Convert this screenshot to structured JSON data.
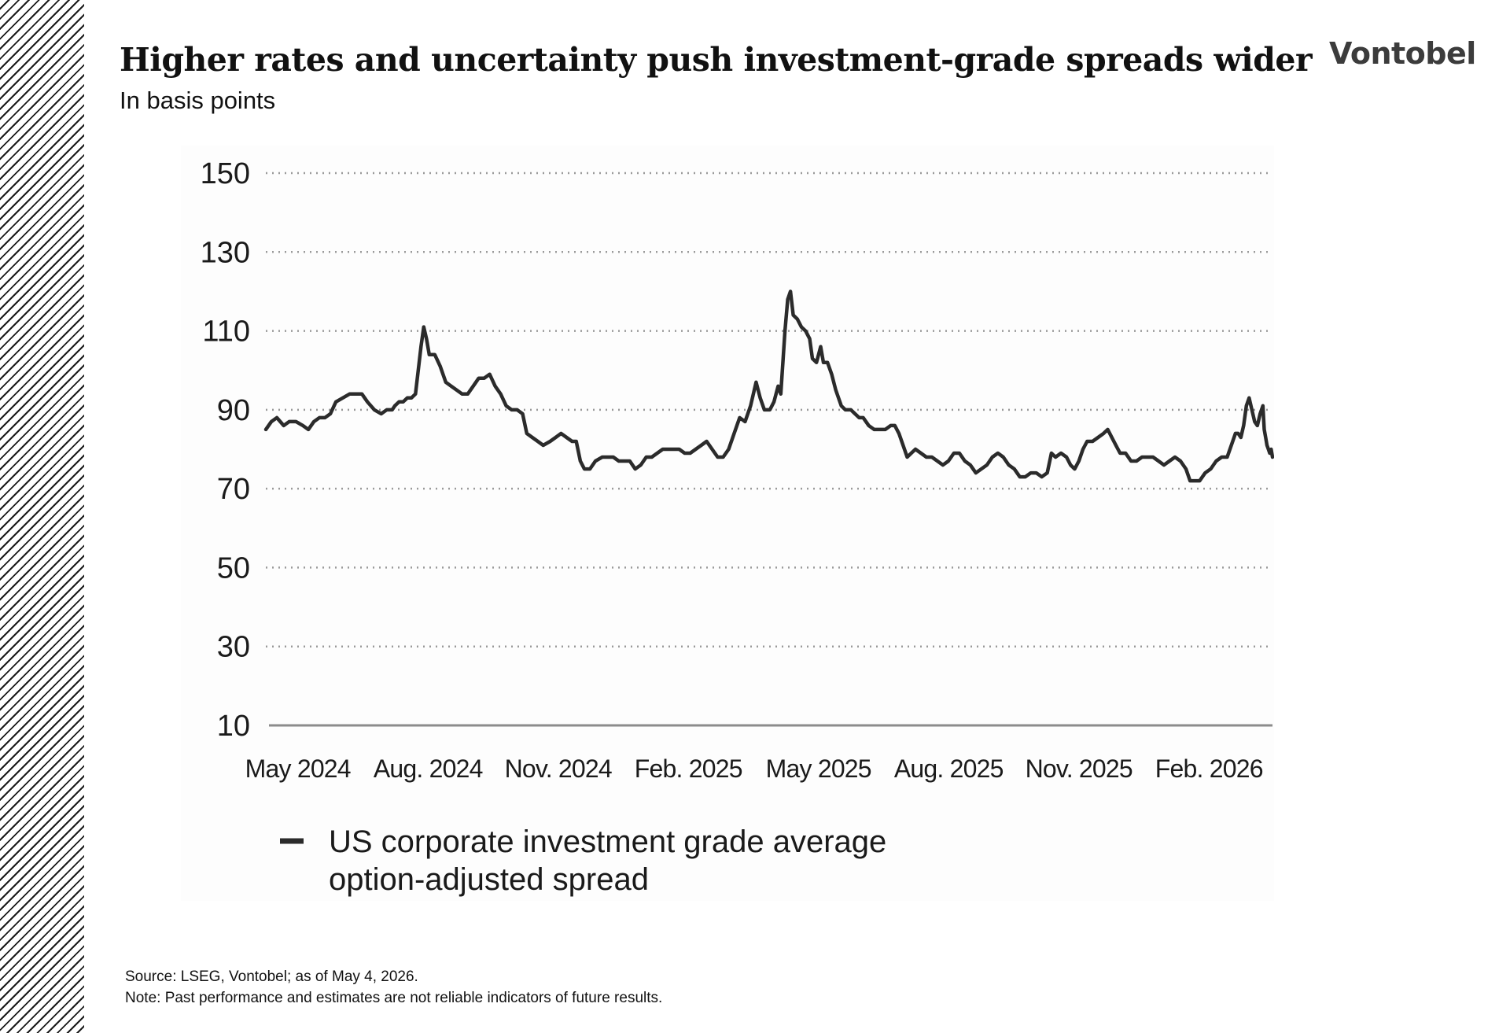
{
  "header": {
    "title": "Higher rates and uncertainty push investment-grade spreads wider",
    "subtitle": "In basis points",
    "logo_text": "Vontobel"
  },
  "colors": {
    "line": "#2b2b2b",
    "grid": "#9a9a9a",
    "axis": "#8c8c8c",
    "text": "#1a1a1a"
  },
  "chart_data": {
    "type": "line",
    "y_ticks": [
      "150",
      "130",
      "110",
      "90",
      "70",
      "50",
      "30",
      "10"
    ],
    "x_ticks": [
      "May 2024",
      "Aug. 2024",
      "Nov. 2024",
      "Feb. 2025",
      "May 2025",
      "Aug. 2025",
      "Nov. 2025",
      "Feb. 2026"
    ],
    "ylim": [
      10,
      150
    ],
    "xlim": [
      "2024-05-01",
      "2026-05-04"
    ],
    "grid": "horizontal dotted",
    "legend_position": "bottom",
    "series": [
      {
        "name": "US corporate investment grade average option-adjusted spread",
        "points": [
          [
            "2024-05-01",
            85
          ],
          [
            "2024-05-05",
            87
          ],
          [
            "2024-05-09",
            88
          ],
          [
            "2024-05-14",
            86
          ],
          [
            "2024-05-18",
            87
          ],
          [
            "2024-05-23",
            87
          ],
          [
            "2024-05-28",
            86
          ],
          [
            "2024-06-01",
            85
          ],
          [
            "2024-06-05",
            87
          ],
          [
            "2024-06-09",
            88
          ],
          [
            "2024-06-13",
            88
          ],
          [
            "2024-06-17",
            89
          ],
          [
            "2024-06-21",
            92
          ],
          [
            "2024-06-26",
            93
          ],
          [
            "2024-07-01",
            94
          ],
          [
            "2024-07-05",
            94
          ],
          [
            "2024-07-10",
            94
          ],
          [
            "2024-07-14",
            92
          ],
          [
            "2024-07-19",
            90
          ],
          [
            "2024-07-24",
            89
          ],
          [
            "2024-07-28",
            90
          ],
          [
            "2024-08-01",
            90
          ],
          [
            "2024-08-03",
            91
          ],
          [
            "2024-08-06",
            92
          ],
          [
            "2024-08-09",
            92
          ],
          [
            "2024-08-12",
            93
          ],
          [
            "2024-08-15",
            93
          ],
          [
            "2024-08-18",
            94
          ],
          [
            "2024-08-20",
            100
          ],
          [
            "2024-08-22",
            106
          ],
          [
            "2024-08-24",
            111
          ],
          [
            "2024-08-26",
            108
          ],
          [
            "2024-08-28",
            104
          ],
          [
            "2024-09-01",
            104
          ],
          [
            "2024-09-05",
            101
          ],
          [
            "2024-09-09",
            97
          ],
          [
            "2024-09-13",
            96
          ],
          [
            "2024-09-17",
            95
          ],
          [
            "2024-09-21",
            94
          ],
          [
            "2024-09-25",
            94
          ],
          [
            "2024-09-29",
            96
          ],
          [
            "2024-10-03",
            98
          ],
          [
            "2024-10-07",
            98
          ],
          [
            "2024-10-11",
            99
          ],
          [
            "2024-10-15",
            96
          ],
          [
            "2024-10-19",
            94
          ],
          [
            "2024-10-23",
            91
          ],
          [
            "2024-10-27",
            90
          ],
          [
            "2024-10-31",
            90
          ],
          [
            "2024-11-04",
            89
          ],
          [
            "2024-11-07",
            84
          ],
          [
            "2024-11-11",
            83
          ],
          [
            "2024-11-15",
            82
          ],
          [
            "2024-11-19",
            81
          ],
          [
            "2024-11-24",
            82
          ],
          [
            "2024-11-28",
            83
          ],
          [
            "2024-12-02",
            84
          ],
          [
            "2024-12-06",
            83
          ],
          [
            "2024-12-10",
            82
          ],
          [
            "2024-12-13",
            82
          ],
          [
            "2024-12-16",
            77
          ],
          [
            "2024-12-19",
            75
          ],
          [
            "2024-12-23",
            75
          ],
          [
            "2024-12-27",
            77
          ],
          [
            "2025-01-01",
            78
          ],
          [
            "2025-01-05",
            78
          ],
          [
            "2025-01-09",
            78
          ],
          [
            "2025-01-13",
            77
          ],
          [
            "2025-01-17",
            77
          ],
          [
            "2025-01-21",
            77
          ],
          [
            "2025-01-25",
            75
          ],
          [
            "2025-01-29",
            76
          ],
          [
            "2025-02-02",
            78
          ],
          [
            "2025-02-06",
            78
          ],
          [
            "2025-02-10",
            79
          ],
          [
            "2025-02-14",
            80
          ],
          [
            "2025-02-18",
            80
          ],
          [
            "2025-02-22",
            80
          ],
          [
            "2025-02-26",
            80
          ],
          [
            "2025-03-02",
            79
          ],
          [
            "2025-03-06",
            79
          ],
          [
            "2025-03-10",
            80
          ],
          [
            "2025-03-14",
            81
          ],
          [
            "2025-03-18",
            82
          ],
          [
            "2025-03-22",
            80
          ],
          [
            "2025-03-26",
            78
          ],
          [
            "2025-03-30",
            78
          ],
          [
            "2025-04-03",
            80
          ],
          [
            "2025-04-07",
            84
          ],
          [
            "2025-04-11",
            88
          ],
          [
            "2025-04-15",
            87
          ],
          [
            "2025-04-19",
            91
          ],
          [
            "2025-04-23",
            97
          ],
          [
            "2025-04-26",
            93
          ],
          [
            "2025-04-29",
            90
          ],
          [
            "2025-05-03",
            90
          ],
          [
            "2025-05-06",
            92
          ],
          [
            "2025-05-09",
            96
          ],
          [
            "2025-05-11",
            94
          ],
          [
            "2025-05-14",
            110
          ],
          [
            "2025-05-16",
            118
          ],
          [
            "2025-05-18",
            120
          ],
          [
            "2025-05-20",
            114
          ],
          [
            "2025-05-23",
            113
          ],
          [
            "2025-05-26",
            111
          ],
          [
            "2025-05-29",
            110
          ],
          [
            "2025-06-01",
            108
          ],
          [
            "2025-06-03",
            103
          ],
          [
            "2025-06-06",
            102
          ],
          [
            "2025-06-09",
            106
          ],
          [
            "2025-06-11",
            102
          ],
          [
            "2025-06-14",
            102
          ],
          [
            "2025-06-17",
            99
          ],
          [
            "2025-06-20",
            95
          ],
          [
            "2025-06-24",
            91
          ],
          [
            "2025-06-27",
            90
          ],
          [
            "2025-07-01",
            90
          ],
          [
            "2025-07-04",
            89
          ],
          [
            "2025-07-07",
            88
          ],
          [
            "2025-07-10",
            88
          ],
          [
            "2025-07-14",
            86
          ],
          [
            "2025-07-18",
            85
          ],
          [
            "2025-07-22",
            85
          ],
          [
            "2025-07-26",
            85
          ],
          [
            "2025-07-30",
            86
          ],
          [
            "2025-08-02",
            86
          ],
          [
            "2025-08-05",
            84
          ],
          [
            "2025-08-08",
            81
          ],
          [
            "2025-08-11",
            78
          ],
          [
            "2025-08-14",
            79
          ],
          [
            "2025-08-17",
            80
          ],
          [
            "2025-08-21",
            79
          ],
          [
            "2025-08-25",
            78
          ],
          [
            "2025-08-29",
            78
          ],
          [
            "2025-09-02",
            77
          ],
          [
            "2025-09-06",
            76
          ],
          [
            "2025-09-10",
            77
          ],
          [
            "2025-09-14",
            79
          ],
          [
            "2025-09-18",
            79
          ],
          [
            "2025-09-22",
            77
          ],
          [
            "2025-09-26",
            76
          ],
          [
            "2025-09-30",
            74
          ],
          [
            "2025-10-04",
            75
          ],
          [
            "2025-10-08",
            76
          ],
          [
            "2025-10-12",
            78
          ],
          [
            "2025-10-16",
            79
          ],
          [
            "2025-10-20",
            78
          ],
          [
            "2025-10-24",
            76
          ],
          [
            "2025-10-28",
            75
          ],
          [
            "2025-11-01",
            73
          ],
          [
            "2025-11-05",
            73
          ],
          [
            "2025-11-09",
            74
          ],
          [
            "2025-11-13",
            74
          ],
          [
            "2025-11-17",
            73
          ],
          [
            "2025-11-21",
            74
          ],
          [
            "2025-11-24",
            79
          ],
          [
            "2025-11-27",
            78
          ],
          [
            "2025-12-01",
            79
          ],
          [
            "2025-12-05",
            78
          ],
          [
            "2025-12-08",
            76
          ],
          [
            "2025-12-11",
            75
          ],
          [
            "2025-12-14",
            77
          ],
          [
            "2025-12-17",
            80
          ],
          [
            "2025-12-20",
            82
          ],
          [
            "2025-12-24",
            82
          ],
          [
            "2025-12-28",
            83
          ],
          [
            "2026-01-01",
            84
          ],
          [
            "2026-01-04",
            85
          ],
          [
            "2026-01-07",
            83
          ],
          [
            "2026-01-10",
            81
          ],
          [
            "2026-01-13",
            79
          ],
          [
            "2026-01-17",
            79
          ],
          [
            "2026-01-21",
            77
          ],
          [
            "2026-01-25",
            77
          ],
          [
            "2026-01-29",
            78
          ],
          [
            "2026-02-02",
            78
          ],
          [
            "2026-02-06",
            78
          ],
          [
            "2026-02-10",
            77
          ],
          [
            "2026-02-14",
            76
          ],
          [
            "2026-02-18",
            77
          ],
          [
            "2026-02-22",
            78
          ],
          [
            "2026-02-26",
            77
          ],
          [
            "2026-03-02",
            75
          ],
          [
            "2026-03-05",
            72
          ],
          [
            "2026-03-08",
            72
          ],
          [
            "2026-03-12",
            72
          ],
          [
            "2026-03-16",
            74
          ],
          [
            "2026-03-20",
            75
          ],
          [
            "2026-03-24",
            77
          ],
          [
            "2026-03-28",
            78
          ],
          [
            "2026-04-01",
            78
          ],
          [
            "2026-04-03",
            80
          ],
          [
            "2026-04-05",
            82
          ],
          [
            "2026-04-07",
            84
          ],
          [
            "2026-04-09",
            84
          ],
          [
            "2026-04-11",
            83
          ],
          [
            "2026-04-13",
            86
          ],
          [
            "2026-04-15",
            91
          ],
          [
            "2026-04-17",
            93
          ],
          [
            "2026-04-19",
            90
          ],
          [
            "2026-04-21",
            87
          ],
          [
            "2026-04-23",
            86
          ],
          [
            "2026-04-25",
            89
          ],
          [
            "2026-04-27",
            91
          ],
          [
            "2026-04-28",
            85
          ],
          [
            "2026-04-29",
            83
          ],
          [
            "2026-04-30",
            81
          ],
          [
            "2026-05-01",
            80
          ],
          [
            "2026-05-02",
            79
          ],
          [
            "2026-05-03",
            80
          ],
          [
            "2026-05-04",
            78
          ]
        ]
      }
    ]
  },
  "footnotes": {
    "source": "Source: LSEG, Vontobel; as of May 4, 2026.",
    "note": "Note: Past performance and estimates are not reliable indicators of future results."
  }
}
